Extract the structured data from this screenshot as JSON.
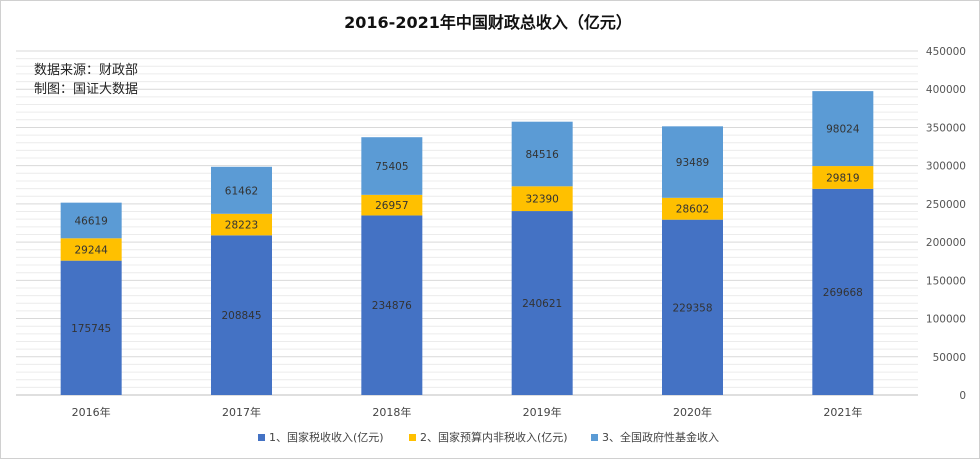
{
  "chart_data": {
    "type": "bar",
    "stacked": true,
    "title": "2016-2021年中国财政总收入（亿元）",
    "notes": [
      "数据来源：财政部",
      "制图：国证大数据"
    ],
    "categories": [
      "2016年",
      "2017年",
      "2018年",
      "2019年",
      "2020年",
      "2021年"
    ],
    "series": [
      {
        "name": "1、国家税收收入(亿元)",
        "color": "#4472C4",
        "values": [
          175745,
          208845,
          234876,
          240621,
          229358,
          269668
        ]
      },
      {
        "name": "2、国家预算内非税收入(亿元)",
        "color": "#FFC000",
        "values": [
          29244,
          28223,
          26957,
          32390,
          28602,
          29819
        ]
      },
      {
        "name": "3、全国政府性基金收入",
        "color": "#5B9BD5",
        "values": [
          46619,
          61462,
          75405,
          84516,
          93489,
          98024
        ]
      }
    ],
    "y_axis": {
      "position": "right",
      "min": 0,
      "max": 450000,
      "step": 50000,
      "ticks": [
        "0",
        "50000",
        "100000",
        "150000",
        "200000",
        "250000",
        "300000",
        "350000",
        "400000",
        "450000"
      ]
    },
    "grid": true,
    "legend": "bottom"
  }
}
